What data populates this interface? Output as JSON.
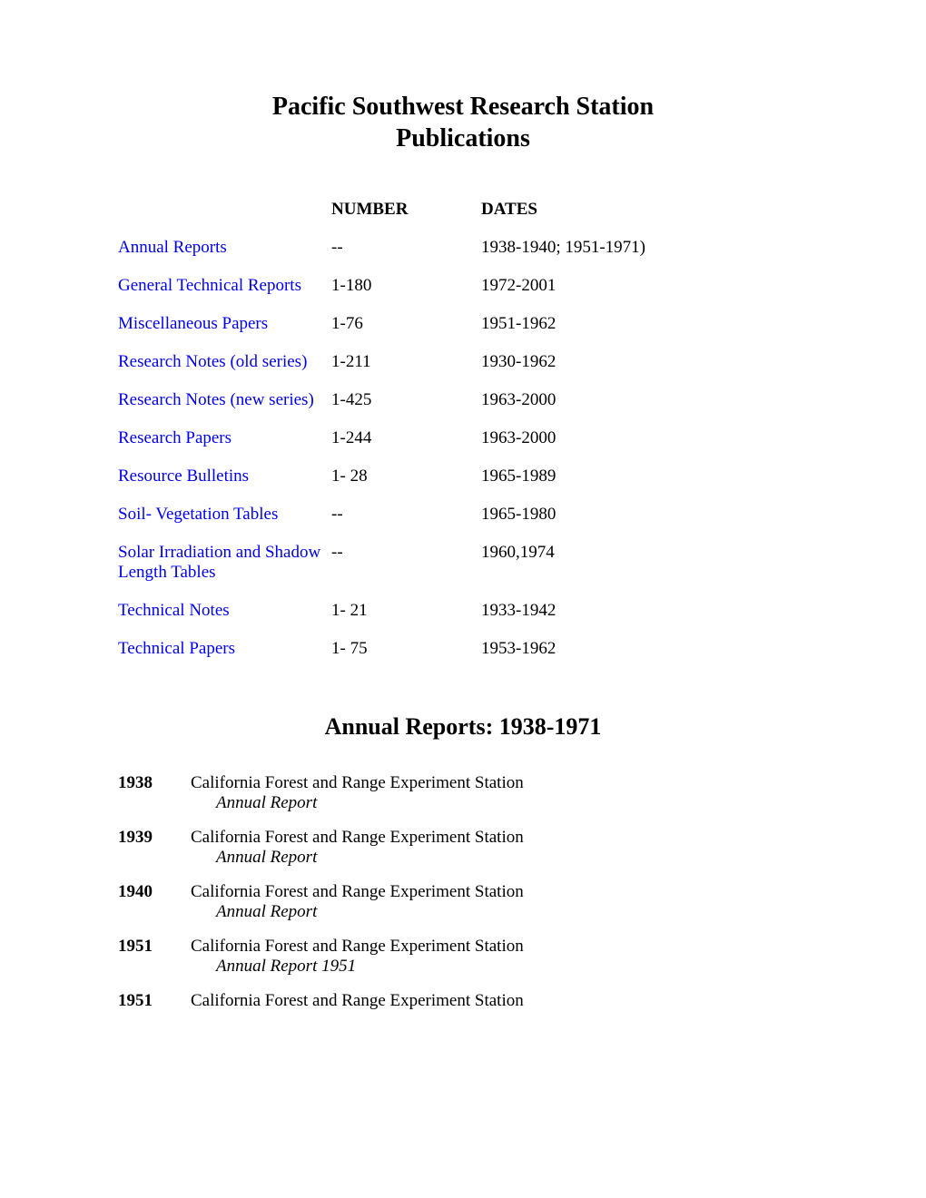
{
  "page": {
    "title_line1": "Pacific Southwest Research Station",
    "title_line2": "Publications",
    "header_number": "NUMBER",
    "header_dates": "DATES",
    "link_color": "#0000EE",
    "text_color": "#000000",
    "background_color": "#ffffff"
  },
  "index": [
    {
      "name": "Annual Reports",
      "number": "--",
      "dates": "1938-1940; 1951-1971)"
    },
    {
      "name": "General Technical Reports",
      "number": "1-180",
      "dates": "1972-2001"
    },
    {
      "name": "Miscellaneous Papers",
      "number": "1-76",
      "dates": "1951-1962"
    },
    {
      "name": "Research Notes (old series)",
      "number": "1-211",
      "dates": "1930-1962"
    },
    {
      "name": "Research Notes (new series)",
      "number": "1-425",
      "dates": "1963-2000"
    },
    {
      "name": "Research Papers",
      "number": "1-244",
      "dates": "1963-2000"
    },
    {
      "name": "Resource Bulletins",
      "number": "1- 28",
      "dates": "1965-1989"
    },
    {
      "name": "Soil- Vegetation Tables",
      "number": "--",
      "dates": "1965-1980"
    },
    {
      "name": "Solar Irradiation and Shadow Length Tables",
      "number": "--",
      "dates": "1960,1974"
    },
    {
      "name": "Technical Notes",
      "number": "1- 21",
      "dates": "1933-1942"
    },
    {
      "name": "Technical Papers",
      "number": "1- 75",
      "dates": "1953-1962"
    }
  ],
  "section": {
    "title": "Annual Reports: 1938-1971"
  },
  "reports": [
    {
      "year": "1938",
      "title": "California Forest and Range Experiment Station",
      "subtitle": "Annual Report"
    },
    {
      "year": "1939",
      "title": "California Forest and Range Experiment Station",
      "subtitle": "Annual Report"
    },
    {
      "year": "1940",
      "title": "California Forest and Range Experiment Station",
      "subtitle": "Annual Report"
    },
    {
      "year": "1951",
      "title": "California Forest and Range Experiment Station",
      "subtitle": "Annual Report 1951"
    },
    {
      "year": "1951",
      "title": "California Forest and Range Experiment Station",
      "subtitle": ""
    }
  ]
}
